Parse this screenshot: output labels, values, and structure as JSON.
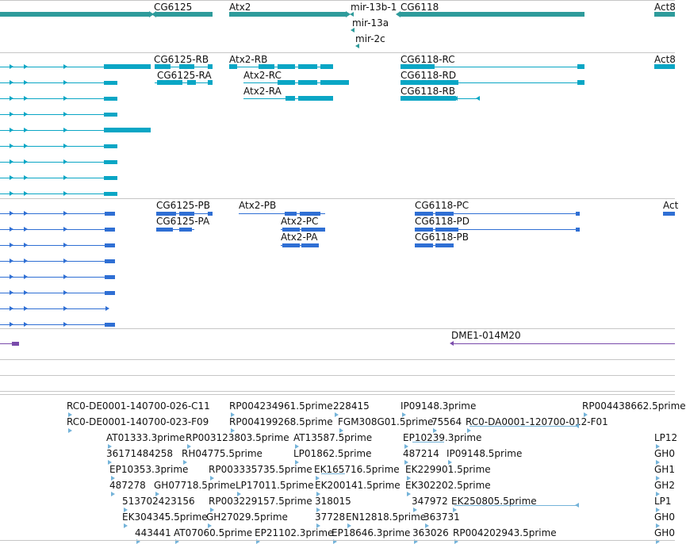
{
  "colors": {
    "gene": "#2e9b9b",
    "transcript": "#0aa6c5",
    "cds": "#2f6fd4",
    "clone": "#7a4bab",
    "est": "#74b3d9",
    "divider": "#c6c6c6"
  },
  "tracks": {
    "genes": [
      {
        "name": "CG6125"
      },
      {
        "name": "Atx2"
      },
      {
        "name": "mir-13b-1"
      },
      {
        "name": "CG6118"
      },
      {
        "name": "Act8"
      },
      {
        "name": "mir-13a"
      },
      {
        "name": "mir-2c"
      }
    ],
    "transcripts": [
      {
        "name": "CG6125-RB"
      },
      {
        "name": "CG6125-RA"
      },
      {
        "name": "Atx2-RB"
      },
      {
        "name": "Atx2-RC"
      },
      {
        "name": "Atx2-RA"
      },
      {
        "name": "CG6118-RC"
      },
      {
        "name": "CG6118-RD"
      },
      {
        "name": "CG6118-RB"
      },
      {
        "name": "Act8"
      }
    ],
    "proteins": [
      {
        "name": "CG6125-PB"
      },
      {
        "name": "CG6125-PA"
      },
      {
        "name": "Atx2-PB"
      },
      {
        "name": "Atx2-PC"
      },
      {
        "name": "Atx2-PA"
      },
      {
        "name": "CG6118-PC"
      },
      {
        "name": "CG6118-PD"
      },
      {
        "name": "CG6118-PB"
      },
      {
        "name": "Act"
      }
    ],
    "clones": [
      {
        "name": "DME1-014M20"
      }
    ],
    "ests": [
      {
        "name": "RC0-DE0001-140700-026-C11"
      },
      {
        "name": "RP004234961.5prime"
      },
      {
        "name": "228415"
      },
      {
        "name": "IP09148.3prime"
      },
      {
        "name": "RP004438662.5prime"
      },
      {
        "name": "RC0-DE0001-140700-023-F09"
      },
      {
        "name": "RP004199268.5prime"
      },
      {
        "name": "FGM308G01.5prime"
      },
      {
        "name": "75564"
      },
      {
        "name": "RC0-DA0001-120700-012-F01"
      },
      {
        "name": "AT01333.3prime"
      },
      {
        "name": "RP003123803.5prime"
      },
      {
        "name": "AT13587.5prime"
      },
      {
        "name": "EP10239.3prime"
      },
      {
        "name": "LP12"
      },
      {
        "name": "36171484258"
      },
      {
        "name": "RH04775.5prime"
      },
      {
        "name": "LP01862.5prime"
      },
      {
        "name": "487214"
      },
      {
        "name": "IP09148.5prime"
      },
      {
        "name": "GH0"
      },
      {
        "name": "EP10353.3prime"
      },
      {
        "name": "RP003335735.5prime"
      },
      {
        "name": "EK165716.5prime"
      },
      {
        "name": "EK229901.5prime"
      },
      {
        "name": "GH1"
      },
      {
        "name": "487278"
      },
      {
        "name": "GH07718.5prime"
      },
      {
        "name": "LP17011.5prime"
      },
      {
        "name": "EK200141.5prime"
      },
      {
        "name": "EK302202.5prime"
      },
      {
        "name": "GH2"
      },
      {
        "name": "513702423156"
      },
      {
        "name": "RP003229157.5prime"
      },
      {
        "name": "318015"
      },
      {
        "name": "347972"
      },
      {
        "name": "EK250805.5prime"
      },
      {
        "name": "LP1"
      },
      {
        "name": "EK304345.5prime"
      },
      {
        "name": "GH27029.5prime"
      },
      {
        "name": "37728"
      },
      {
        "name": "EN12818.5prime"
      },
      {
        "name": "363731"
      },
      {
        "name": "GH0"
      },
      {
        "name": "443441"
      },
      {
        "name": "AT07060.5prime"
      },
      {
        "name": "EP21102.3prime"
      },
      {
        "name": "EP18646.3prime"
      },
      {
        "name": "363026"
      },
      {
        "name": "RP004202943.5prime"
      },
      {
        "name": "GH0"
      }
    ]
  }
}
